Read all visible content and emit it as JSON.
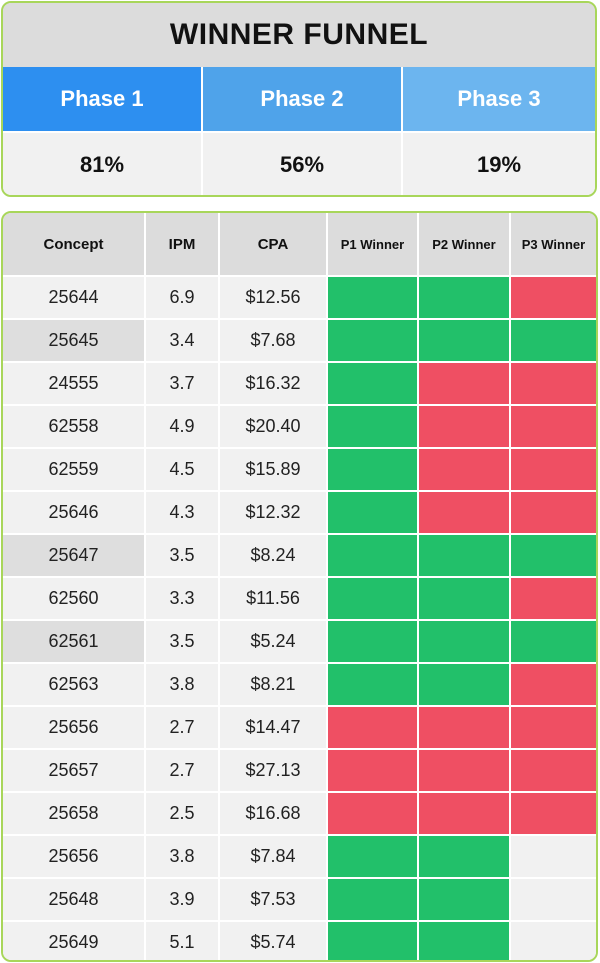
{
  "funnel": {
    "title": "WINNER FUNNEL",
    "phases": [
      {
        "label": "Phase 1",
        "percent": "81%",
        "color": "#2d8ff0"
      },
      {
        "label": "Phase 2",
        "percent": "56%",
        "color": "#4fa3ea"
      },
      {
        "label": "Phase 3",
        "percent": "19%",
        "color": "#6cb5ef"
      }
    ]
  },
  "table": {
    "headers": {
      "concept": "Concept",
      "ipm": "IPM",
      "cpa": "CPA",
      "p1": "P1 Winner",
      "p2": "P2 Winner",
      "p3": "P3 Winner"
    },
    "status_colors": {
      "win": "#22c06a",
      "lose": "#ef4f63",
      "none": "#f1f1f1"
    },
    "rows": [
      {
        "concept": "25644",
        "ipm": "6.9",
        "cpa": "$12.56",
        "p1": "win",
        "p2": "win",
        "p3": "lose",
        "highlight": false
      },
      {
        "concept": "25645",
        "ipm": "3.4",
        "cpa": "$7.68",
        "p1": "win",
        "p2": "win",
        "p3": "win",
        "highlight": true
      },
      {
        "concept": "24555",
        "ipm": "3.7",
        "cpa": "$16.32",
        "p1": "win",
        "p2": "lose",
        "p3": "lose",
        "highlight": false
      },
      {
        "concept": "62558",
        "ipm": "4.9",
        "cpa": "$20.40",
        "p1": "win",
        "p2": "lose",
        "p3": "lose",
        "highlight": false
      },
      {
        "concept": "62559",
        "ipm": "4.5",
        "cpa": "$15.89",
        "p1": "win",
        "p2": "lose",
        "p3": "lose",
        "highlight": false
      },
      {
        "concept": "25646",
        "ipm": "4.3",
        "cpa": "$12.32",
        "p1": "win",
        "p2": "lose",
        "p3": "lose",
        "highlight": false
      },
      {
        "concept": "25647",
        "ipm": "3.5",
        "cpa": "$8.24",
        "p1": "win",
        "p2": "win",
        "p3": "win",
        "highlight": true
      },
      {
        "concept": "62560",
        "ipm": "3.3",
        "cpa": "$11.56",
        "p1": "win",
        "p2": "win",
        "p3": "lose",
        "highlight": false
      },
      {
        "concept": "62561",
        "ipm": "3.5",
        "cpa": "$5.24",
        "p1": "win",
        "p2": "win",
        "p3": "win",
        "highlight": true
      },
      {
        "concept": "62563",
        "ipm": "3.8",
        "cpa": "$8.21",
        "p1": "win",
        "p2": "win",
        "p3": "lose",
        "highlight": false
      },
      {
        "concept": "25656",
        "ipm": "2.7",
        "cpa": "$14.47",
        "p1": "lose",
        "p2": "lose",
        "p3": "lose",
        "highlight": false
      },
      {
        "concept": "25657",
        "ipm": "2.7",
        "cpa": "$27.13",
        "p1": "lose",
        "p2": "lose",
        "p3": "lose",
        "highlight": false
      },
      {
        "concept": "25658",
        "ipm": "2.5",
        "cpa": "$16.68",
        "p1": "lose",
        "p2": "lose",
        "p3": "lose",
        "highlight": false
      },
      {
        "concept": "25656",
        "ipm": "3.8",
        "cpa": "$7.84",
        "p1": "win",
        "p2": "win",
        "p3": "none",
        "highlight": false
      },
      {
        "concept": "25648",
        "ipm": "3.9",
        "cpa": "$7.53",
        "p1": "win",
        "p2": "win",
        "p3": "none",
        "highlight": false
      },
      {
        "concept": "25649",
        "ipm": "5.1",
        "cpa": "$5.74",
        "p1": "win",
        "p2": "win",
        "p3": "none",
        "highlight": false
      }
    ]
  }
}
